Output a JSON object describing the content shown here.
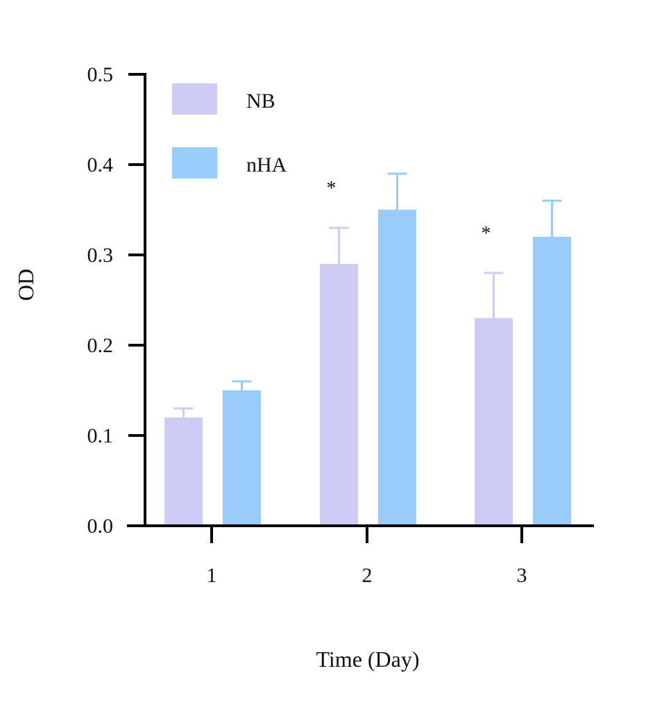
{
  "chart_data": {
    "type": "bar",
    "title": "",
    "xlabel": "Time (Day)",
    "ylabel": "OD",
    "categories": [
      "1",
      "2",
      "3"
    ],
    "ylim": [
      0,
      0.5
    ],
    "yticks": [
      "0.0",
      "0.1",
      "0.2",
      "0.3",
      "0.4",
      "0.5"
    ],
    "grid": false,
    "legend_position": "top-left",
    "series": [
      {
        "name": "NB",
        "color": "#CCCCF7",
        "values": [
          0.12,
          0.29,
          0.23
        ],
        "errors": [
          0.01,
          0.04,
          0.05
        ],
        "annotations": [
          "",
          "*",
          "*"
        ]
      },
      {
        "name": "nHA",
        "color": "#99CCFA",
        "values": [
          0.15,
          0.35,
          0.32
        ],
        "errors": [
          0.01,
          0.04,
          0.04
        ],
        "annotations": [
          "",
          "",
          ""
        ]
      }
    ]
  }
}
